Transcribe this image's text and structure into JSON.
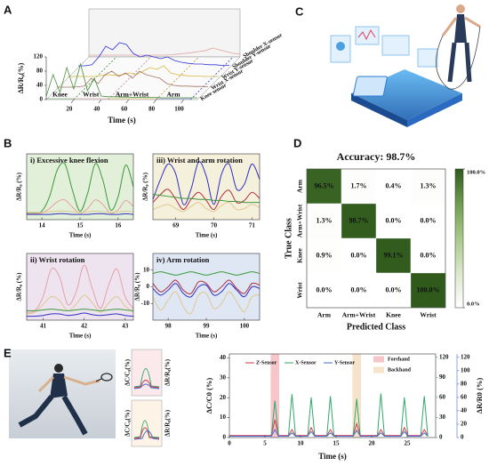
{
  "panel_labels": [
    "A",
    "B",
    "C",
    "D",
    "E"
  ],
  "insets": [
    {
      "left": "ΔC/C₀(%)",
      "right": "ΔR/R₀(%)"
    },
    {
      "left": "ΔC/C₀(%)",
      "right": "ΔR/R₀(%)"
    }
  ],
  "chart_data": [
    {
      "type": "line3d",
      "x_label": "Time (s)",
      "y_label": "ΔR/R₀(%)",
      "xlim": [
        0,
        110
      ],
      "xticks": [
        20,
        40,
        60,
        80,
        100
      ],
      "ylim": [
        0,
        120
      ],
      "yticks": [
        0,
        40,
        80,
        120
      ],
      "x": [
        0,
        5,
        10,
        15,
        20,
        25,
        30,
        35,
        40,
        45,
        50,
        55,
        60,
        65,
        70,
        75,
        80,
        85,
        90,
        95,
        100,
        105,
        110
      ],
      "regions": [
        {
          "label": "Knee",
          "range": [
            0,
            20
          ],
          "color": "#3a8a3a"
        },
        {
          "label": "Wrist",
          "range": [
            20,
            45
          ],
          "color": "#c07f86"
        },
        {
          "label": "Arm+Wrist",
          "range": [
            45,
            80
          ],
          "color": "#b89a1a"
        },
        {
          "label": "Arm",
          "range": [
            80,
            105
          ],
          "color": "#3040c0"
        }
      ],
      "series": [
        {
          "name": "Knee sensor",
          "color": "#4a8f3c",
          "values": [
            10,
            70,
            20,
            90,
            30,
            100,
            25,
            60,
            10,
            8,
            8,
            7,
            7,
            6,
            6,
            6,
            6,
            5,
            5,
            5,
            5,
            5,
            5
          ]
        },
        {
          "name": "Wrist X-sensor",
          "color": "#a87565",
          "values": [
            5,
            5,
            5,
            6,
            8,
            30,
            15,
            40,
            50,
            35,
            45,
            30,
            50,
            40,
            35,
            30,
            15,
            10,
            8,
            8,
            7,
            7,
            6
          ]
        },
        {
          "name": "Wrist Y-sensor",
          "color": "#d4b840",
          "values": [
            5,
            5,
            5,
            5,
            5,
            8,
            10,
            8,
            10,
            15,
            10,
            20,
            30,
            25,
            35,
            15,
            10,
            8,
            6,
            6,
            5,
            5,
            5
          ]
        },
        {
          "name": "Shoulder Y-sensor",
          "color": "#3434d4",
          "values": [
            5,
            5,
            8,
            30,
            60,
            50,
            70,
            65,
            40,
            30,
            35,
            30,
            25,
            30,
            20,
            15,
            12,
            10,
            10,
            8,
            8,
            6,
            6
          ]
        },
        {
          "name": "Shoulder X-sensor",
          "color": "#e2a2a2",
          "values": [
            5,
            5,
            5,
            5,
            5,
            5,
            5,
            5,
            5,
            5,
            5,
            5,
            6,
            8,
            10,
            12,
            15,
            18,
            25,
            20,
            15,
            10,
            8
          ]
        }
      ]
    },
    {
      "type": "line",
      "title": "i) Excessive knee flexion",
      "title_color": "#2f7a2a",
      "background": "#e2f0da",
      "x_label": "Time (s)",
      "y_label": "ΔR/R₀ (%)",
      "xlim": [
        13.6,
        16.4
      ],
      "xticks": [
        14,
        15,
        16
      ],
      "ylim": [
        -5,
        95
      ],
      "x": [
        13.6,
        13.8,
        14.0,
        14.2,
        14.4,
        14.6,
        14.8,
        15.0,
        15.2,
        15.4,
        15.6,
        15.8,
        16.0,
        16.2,
        16.4
      ],
      "series": [
        {
          "color": "#3c9a3c",
          "values": [
            5,
            5,
            8,
            30,
            70,
            80,
            40,
            8,
            35,
            80,
            55,
            10,
            30,
            78,
            45
          ]
        },
        {
          "color": "#e6a0a0",
          "values": [
            4,
            4,
            5,
            12,
            22,
            25,
            14,
            5,
            12,
            25,
            18,
            5,
            10,
            24,
            15
          ]
        },
        {
          "color": "#3030c0",
          "values": [
            3,
            3,
            3,
            3,
            4,
            4,
            3,
            3,
            3,
            4,
            4,
            3,
            3,
            4,
            3
          ]
        },
        {
          "color": "#e0c890",
          "values": [
            6,
            6,
            6,
            7,
            8,
            8,
            7,
            6,
            7,
            8,
            7,
            6,
            7,
            8,
            7
          ]
        }
      ]
    },
    {
      "type": "line",
      "title": "ii) Wrist rotation",
      "title_color": "#b05a6e",
      "background": "#ede4ef",
      "x_label": "Time (s)",
      "y_label": "ΔR/R₀ (%)",
      "xlim": [
        40.6,
        43.2
      ],
      "xticks": [
        41,
        42,
        43
      ],
      "ylim": [
        0,
        85
      ],
      "x": [
        40.6,
        40.8,
        41.0,
        41.2,
        41.4,
        41.6,
        41.8,
        42.0,
        42.2,
        42.4,
        42.6,
        42.8,
        43.0,
        43.2
      ],
      "series": [
        {
          "color": "#e6a0a8",
          "values": [
            10,
            12,
            30,
            65,
            55,
            20,
            35,
            70,
            40,
            15,
            45,
            65,
            30,
            15
          ]
        },
        {
          "color": "#e0c890",
          "values": [
            8,
            10,
            20,
            30,
            25,
            12,
            20,
            32,
            22,
            10,
            22,
            30,
            18,
            10
          ]
        },
        {
          "color": "#3030c0",
          "values": [
            5,
            5,
            6,
            8,
            8,
            6,
            7,
            9,
            7,
            6,
            7,
            8,
            6,
            5
          ]
        },
        {
          "color": "#3c9a3c",
          "values": [
            12,
            12,
            13,
            14,
            13,
            12,
            13,
            14,
            13,
            12,
            13,
            14,
            13,
            12
          ]
        }
      ]
    },
    {
      "type": "line",
      "title": "iii) Wrist and arm rotation",
      "title_color": "#b8981c",
      "background": "#f5f0dc",
      "x_label": "Time (s)",
      "y_label": "ΔR/R₀ (%)",
      "xlim": [
        68.4,
        71.2
      ],
      "xticks": [
        69,
        70,
        71
      ],
      "ylim": [
        -5,
        60
      ],
      "x": [
        68.4,
        68.6,
        68.8,
        69.0,
        69.2,
        69.4,
        69.6,
        69.8,
        70.0,
        70.2,
        70.4,
        70.6,
        70.8,
        71.0,
        71.2
      ],
      "series": [
        {
          "color": "#3030c0",
          "values": [
            15,
            35,
            50,
            40,
            10,
            25,
            52,
            38,
            10,
            40,
            50,
            25,
            30,
            50,
            35
          ]
        },
        {
          "color": "#b03040",
          "values": [
            12,
            20,
            25,
            15,
            5,
            15,
            22,
            14,
            5,
            18,
            24,
            12,
            14,
            22,
            16
          ]
        },
        {
          "color": "#e0c890",
          "values": [
            5,
            8,
            10,
            6,
            3,
            8,
            12,
            6,
            3,
            9,
            12,
            5,
            6,
            10,
            7
          ]
        },
        {
          "color": "#3c9a3c",
          "values": [
            20,
            19,
            18,
            17,
            16,
            16,
            15,
            15,
            14,
            14,
            13,
            13,
            12,
            12,
            12
          ]
        }
      ]
    },
    {
      "type": "line",
      "title": "iv) Arm rotation",
      "title_color": "#2a4aa0",
      "background": "#dfe6f4",
      "x_label": "Time (s)",
      "y_label": "ΔR/R₀ (%)",
      "xlim": [
        97.6,
        100.4
      ],
      "xticks": [
        98,
        99,
        100
      ],
      "ylim": [
        -20,
        20
      ],
      "yticks": [
        -10,
        0,
        10
      ],
      "x": [
        97.6,
        97.8,
        98.0,
        98.2,
        98.4,
        98.6,
        98.8,
        99.0,
        99.2,
        99.4,
        99.6,
        99.8,
        100.0,
        100.2,
        100.4
      ],
      "series": [
        {
          "color": "#3c9a3c",
          "values": [
            8,
            9,
            8,
            7,
            8,
            9,
            8,
            7,
            8,
            9,
            8,
            7,
            8,
            9,
            8
          ]
        },
        {
          "color": "#b03040",
          "values": [
            2,
            -3,
            0,
            4,
            -2,
            -4,
            3,
            2,
            -3,
            0,
            4,
            -1,
            -4,
            2,
            1
          ]
        },
        {
          "color": "#3030c0",
          "values": [
            -1,
            -5,
            -2,
            2,
            -4,
            -6,
            0,
            1,
            -5,
            -3,
            2,
            -2,
            -6,
            0,
            -1
          ]
        },
        {
          "color": "#e0c890",
          "values": [
            -6,
            -14,
            -8,
            -3,
            -12,
            -16,
            -5,
            -4,
            -13,
            -10,
            -3,
            -9,
            -15,
            -6,
            -5
          ]
        }
      ]
    },
    {
      "type": "heatmap",
      "title": "Accuracy: 98.7%",
      "x_label": "Predicted Class",
      "y_label": "True Class",
      "categories": [
        "Arm",
        "Arm+Wrist",
        "Knee",
        "Wrist"
      ],
      "values": [
        [
          96.5,
          1.7,
          0.4,
          1.3
        ],
        [
          1.3,
          98.7,
          0.0,
          0.0
        ],
        [
          0.9,
          0.0,
          99.1,
          0.0
        ],
        [
          0.0,
          0.0,
          0.0,
          100.0
        ]
      ],
      "value_labels": [
        [
          "96.5%",
          "1.7%",
          "0.4%",
          "1.3%"
        ],
        [
          "1.3%",
          "98.7%",
          "0.0%",
          "0.0%"
        ],
        [
          "0.9%",
          "0.0%",
          "99.1%",
          "0.0%"
        ],
        [
          "0.0%",
          "0.0%",
          "0.0%",
          "100.0%"
        ]
      ],
      "colormap": [
        "#ffffff",
        "#dce8cb",
        "#a9c98a",
        "#6f9d4e",
        "#2f5a1c"
      ],
      "clim": [
        0,
        100
      ],
      "cticks": [
        {
          "value": 100,
          "label": "100.0%"
        },
        {
          "value": 0,
          "label": "0.0%"
        }
      ]
    },
    {
      "type": "line",
      "x_label": "Time (s)",
      "y_label": "ΔC/C0 (%)",
      "y3_label": "ΔR/R0 (%)",
      "xlim": [
        0,
        29
      ],
      "xticks": [
        0,
        5,
        10,
        15,
        20,
        25
      ],
      "ylim": [
        0,
        42
      ],
      "yticks": [
        0,
        10,
        20,
        30,
        40
      ],
      "y2lim": [
        0,
        125
      ],
      "y2ticks": [
        0,
        30,
        60,
        90,
        120
      ],
      "y3lim": [
        0,
        125
      ],
      "y3ticks": [
        0,
        20,
        40,
        60,
        80,
        100,
        120
      ],
      "highlights": [
        {
          "name": "Forehand",
          "range": [
            5.8,
            7.0
          ],
          "color": "#f7c6cb"
        },
        {
          "name": "Backhand",
          "range": [
            17.3,
            18.5
          ],
          "color": "#f6e3cc"
        }
      ],
      "x": [
        0,
        5.9,
        6.4,
        6.9,
        8.3,
        8.8,
        9.3,
        11.0,
        11.5,
        12.0,
        13.7,
        14.2,
        14.7,
        17.4,
        17.9,
        18.4,
        20.8,
        21.3,
        21.8,
        24.1,
        24.6,
        25.1,
        26.9,
        27.4,
        27.9
      ],
      "series": [
        {
          "name": "Z-Sensor",
          "color": "#d8364a",
          "values": [
            1,
            1,
            9,
            1,
            1,
            4,
            1,
            1,
            5,
            1,
            1,
            4,
            1,
            1,
            7,
            1,
            1,
            4,
            1,
            1,
            5,
            1,
            1,
            4,
            1
          ]
        },
        {
          "name": "X-Sensor",
          "color": "#2fa86a",
          "axis": "y2",
          "values": [
            2,
            2,
            55,
            2,
            2,
            65,
            2,
            2,
            60,
            2,
            2,
            62,
            2,
            2,
            58,
            2,
            2,
            66,
            2,
            2,
            60,
            2,
            2,
            62,
            2
          ]
        },
        {
          "name": "Y-Sensor",
          "color": "#4a6ad0",
          "axis": "y3",
          "values": [
            2,
            2,
            12,
            2,
            2,
            7,
            2,
            2,
            9,
            2,
            2,
            7,
            2,
            2,
            11,
            2,
            2,
            7,
            2,
            2,
            9,
            2,
            2,
            7,
            2
          ]
        }
      ]
    }
  ]
}
